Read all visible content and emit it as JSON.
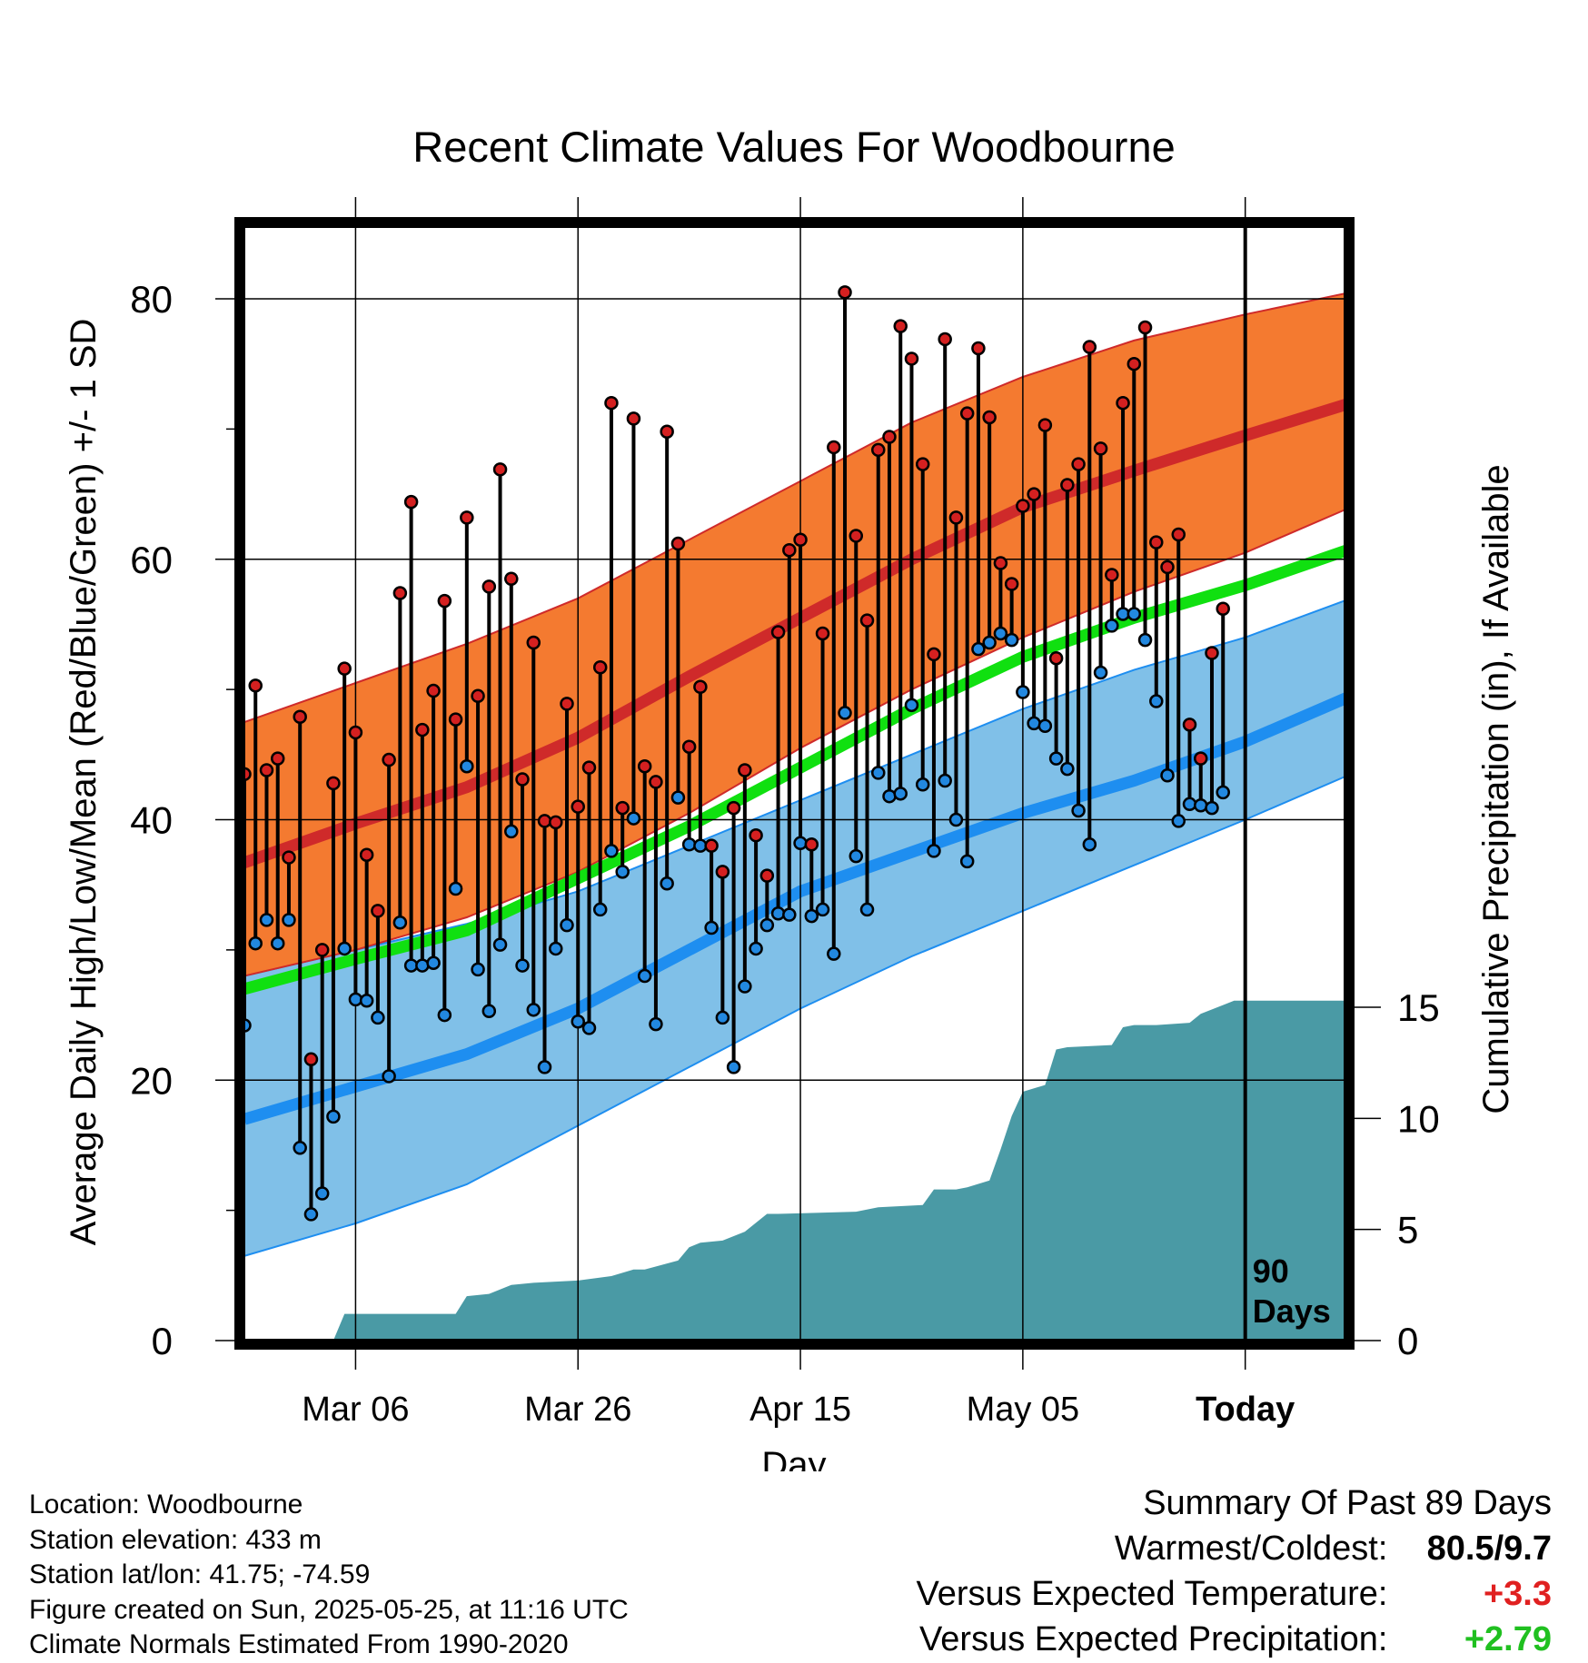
{
  "chart_data": {
    "type": "line",
    "title": "Recent Climate Values For Woodbourne",
    "xlabel": "Day",
    "ylabel": "Average Daily High/Low/Mean (Red/Blue/Green) +/- 1 SD",
    "y2label": "Cumulative Precipitation (in), If Available",
    "ylim": [
      0,
      80
    ],
    "y2lim": [
      0,
      15
    ],
    "y2_range_max": 18.5,
    "yticks": [
      "0",
      "20",
      "40",
      "60",
      "80"
    ],
    "y2ticks": [
      "0",
      "5",
      "10",
      "15"
    ],
    "xticks": [
      {
        "label": "Mar 06",
        "day": 10
      },
      {
        "label": "Mar 26",
        "day": 30
      },
      {
        "label": "Apr 15",
        "day": 50
      },
      {
        "label": "May 05",
        "day": 70
      },
      {
        "label": "Today",
        "day": 90
      }
    ],
    "xrange_days": [
      0,
      99.5
    ],
    "today_marker": {
      "day": 90,
      "label_line1": "90",
      "label_line2": "Days"
    },
    "grid": true,
    "colors": {
      "high_band": "#f47a30",
      "high_mean": "#cf2a2a",
      "low_band": "#80c0e8",
      "low_mean": "#1e8ef0",
      "normal_mean": "#10e010",
      "precip": "#4a9aa5",
      "high_marker": "#d42020",
      "low_marker": "#2288e0",
      "positive_temp": "#e02020",
      "positive_precip": "#20c020"
    },
    "normals": {
      "days": [
        0,
        10,
        20,
        30,
        40,
        50,
        60,
        70,
        80,
        90,
        99.5
      ],
      "high_mean": [
        36.7,
        39.7,
        42.5,
        46.3,
        51.0,
        55.5,
        60.0,
        64.0,
        66.8,
        69.5,
        72.0
      ],
      "high_sd_upper": [
        47.5,
        50.5,
        53.5,
        57.0,
        61.5,
        66.0,
        70.5,
        74.0,
        76.8,
        78.8,
        80.5
      ],
      "high_sd_lower": [
        28.0,
        30.0,
        32.5,
        36.0,
        40.5,
        45.5,
        50.0,
        54.0,
        57.5,
        60.5,
        64.0
      ],
      "normal_mean": [
        27.0,
        29.3,
        31.5,
        35.5,
        39.5,
        44.0,
        48.5,
        52.5,
        55.5,
        58.0,
        60.8
      ],
      "low_mean": [
        17.0,
        19.5,
        22.0,
        25.5,
        30.0,
        34.5,
        37.5,
        40.5,
        43.0,
        46.0,
        49.5
      ],
      "low_sd_upper": [
        28.0,
        30.0,
        32.0,
        34.5,
        38.0,
        41.5,
        45.0,
        48.5,
        51.5,
        54.0,
        57.0
      ],
      "low_sd_lower": [
        6.5,
        9.0,
        12.0,
        16.5,
        21.0,
        25.5,
        29.5,
        33.0,
        36.5,
        40.0,
        43.5
      ]
    },
    "series": [
      {
        "name": "High",
        "values": [
          43.5,
          50.3,
          43.8,
          44.7,
          37.1,
          47.9,
          21.6,
          30.0,
          42.8,
          51.6,
          46.7,
          37.3,
          33.0,
          44.6,
          57.4,
          64.4,
          46.9,
          49.9,
          56.8,
          47.7,
          63.2,
          49.5,
          57.9,
          66.9,
          58.5,
          43.1,
          53.6,
          39.9,
          39.8,
          48.9,
          41.0,
          44.0,
          51.7,
          72.0,
          40.9,
          70.8,
          44.1,
          42.9,
          69.8,
          61.2,
          45.6,
          50.2,
          38.0,
          36.0,
          40.9,
          43.8,
          38.8,
          35.7,
          54.4,
          60.7,
          61.5,
          38.1,
          54.3,
          68.6,
          80.5,
          61.8,
          55.3,
          68.4,
          69.4,
          77.9,
          75.4,
          67.3,
          52.7,
          76.9,
          63.2,
          71.2,
          76.2,
          70.9,
          59.7,
          58.1,
          64.1,
          65.0,
          70.3,
          52.4,
          65.7,
          67.3,
          76.3,
          68.5,
          58.8,
          72.0,
          75.0,
          77.8,
          61.3,
          59.4,
          61.9,
          47.3,
          44.7,
          52.8,
          56.2
        ]
      },
      {
        "name": "Low",
        "values": [
          24.2,
          30.5,
          32.3,
          30.5,
          32.3,
          14.8,
          9.7,
          11.3,
          17.2,
          30.1,
          26.2,
          26.1,
          24.8,
          20.3,
          32.1,
          28.8,
          28.8,
          29.0,
          25.0,
          34.7,
          44.1,
          28.5,
          25.3,
          30.4,
          39.1,
          28.8,
          25.4,
          21.0,
          30.1,
          31.9,
          24.5,
          24.0,
          33.1,
          37.6,
          36.0,
          40.1,
          28.0,
          24.3,
          35.1,
          41.7,
          38.1,
          38.0,
          31.7,
          24.8,
          21.0,
          27.2,
          30.1,
          31.9,
          32.8,
          32.7,
          38.2,
          32.6,
          33.1,
          29.7,
          48.2,
          37.2,
          33.1,
          43.6,
          41.8,
          42.0,
          48.8,
          42.7,
          37.6,
          43.0,
          40.0,
          36.8,
          53.1,
          53.6,
          54.3,
          53.8,
          49.8,
          47.4,
          47.2,
          44.7,
          43.9,
          40.7,
          38.1,
          51.3,
          54.9,
          55.8,
          55.8,
          53.8,
          49.1,
          43.4,
          39.9,
          41.2,
          41.1,
          40.9,
          42.1
        ]
      }
    ],
    "precip_cumulative": {
      "days": [
        0,
        8,
        9,
        19,
        20,
        22,
        24,
        26,
        30,
        33,
        35,
        36,
        39,
        40,
        41,
        43,
        45,
        47,
        48,
        55,
        57,
        61,
        62,
        64,
        65,
        67,
        68,
        69,
        70,
        72,
        73,
        74,
        78,
        79,
        80,
        82,
        85,
        86,
        88,
        89,
        99.5
      ],
      "values": [
        0,
        0,
        1.2,
        1.2,
        2.0,
        2.1,
        2.5,
        2.6,
        2.7,
        2.9,
        3.2,
        3.2,
        3.6,
        4.2,
        4.4,
        4.5,
        4.9,
        5.7,
        5.7,
        5.8,
        6.0,
        6.1,
        6.8,
        6.8,
        6.9,
        7.2,
        8.6,
        10.1,
        11.2,
        11.5,
        13.1,
        13.2,
        13.3,
        14.1,
        14.2,
        14.2,
        14.3,
        14.7,
        15.1,
        15.3,
        15.3
      ]
    }
  },
  "info": {
    "location": "Location: Woodbourne",
    "elevation": "Station elevation: 433 m",
    "latlon": "Station lat/lon: 41.75; -74.59",
    "created": "Figure created on Sun, 2025-05-25, at 11:16 UTC",
    "normals": "Climate Normals Estimated From 1990-2020"
  },
  "summary": {
    "heading": "Summary Of Past 89 Days",
    "warmest_label": "Warmest/Coldest:",
    "warmest_value": "80.5/9.7",
    "temp_label": "Versus Expected Temperature:",
    "temp_value": "+3.3",
    "precip_label": "Versus Expected Precipitation:",
    "precip_value": "+2.79"
  }
}
